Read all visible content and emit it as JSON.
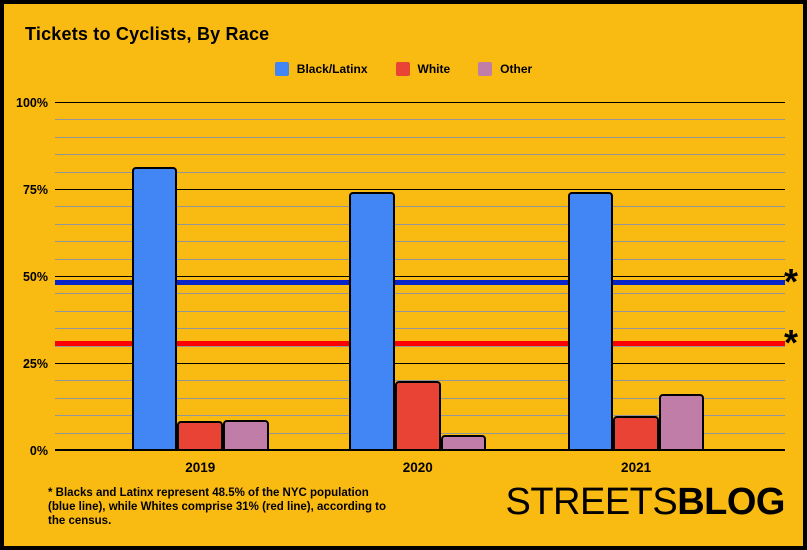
{
  "title": "Tickets to Cyclists, By Race",
  "chart_data": {
    "type": "bar",
    "title": "Tickets to Cyclists, By Race",
    "categories": [
      "2019",
      "2020",
      "2021"
    ],
    "series": [
      {
        "name": "Black/Latinx",
        "color": "#4285F4",
        "values": [
          81.5,
          74.5,
          74.5
        ]
      },
      {
        "name": "White",
        "color": "#E94335",
        "values": [
          8.5,
          20,
          10
        ]
      },
      {
        "name": "Other",
        "color": "#C07DA8",
        "values": [
          9,
          4.5,
          16.5
        ]
      }
    ],
    "ylabel": "",
    "xlabel": "",
    "ylim": [
      0,
      100
    ],
    "yticks": [
      {
        "value": 100,
        "label": "100%"
      },
      {
        "value": 75,
        "label": "75%"
      },
      {
        "value": 50,
        "label": "50%"
      },
      {
        "value": 25,
        "label": "25%"
      },
      {
        "value": 0,
        "label": "0%"
      }
    ],
    "minor_tick_step": 5,
    "grid": true,
    "legend_position": "top",
    "reference_lines": [
      {
        "value": 48.5,
        "color": "#0823C8",
        "marker": "*"
      },
      {
        "value": 31,
        "color": "#FE0000",
        "marker": "*"
      }
    ]
  },
  "footnote_lines": [
    "* Blacks and Latinx represent 48.5% of the NYC population",
    "(blue line), while Whites comprise 31% (red line), according to",
    "the census."
  ],
  "logo": {
    "part1": "STREETS",
    "part2": "BLOG"
  },
  "colors": {
    "background": "#F9BA12",
    "border": "#000000",
    "major_grid": "#000000",
    "minor_grid": "#92969c",
    "text": "#000000"
  }
}
